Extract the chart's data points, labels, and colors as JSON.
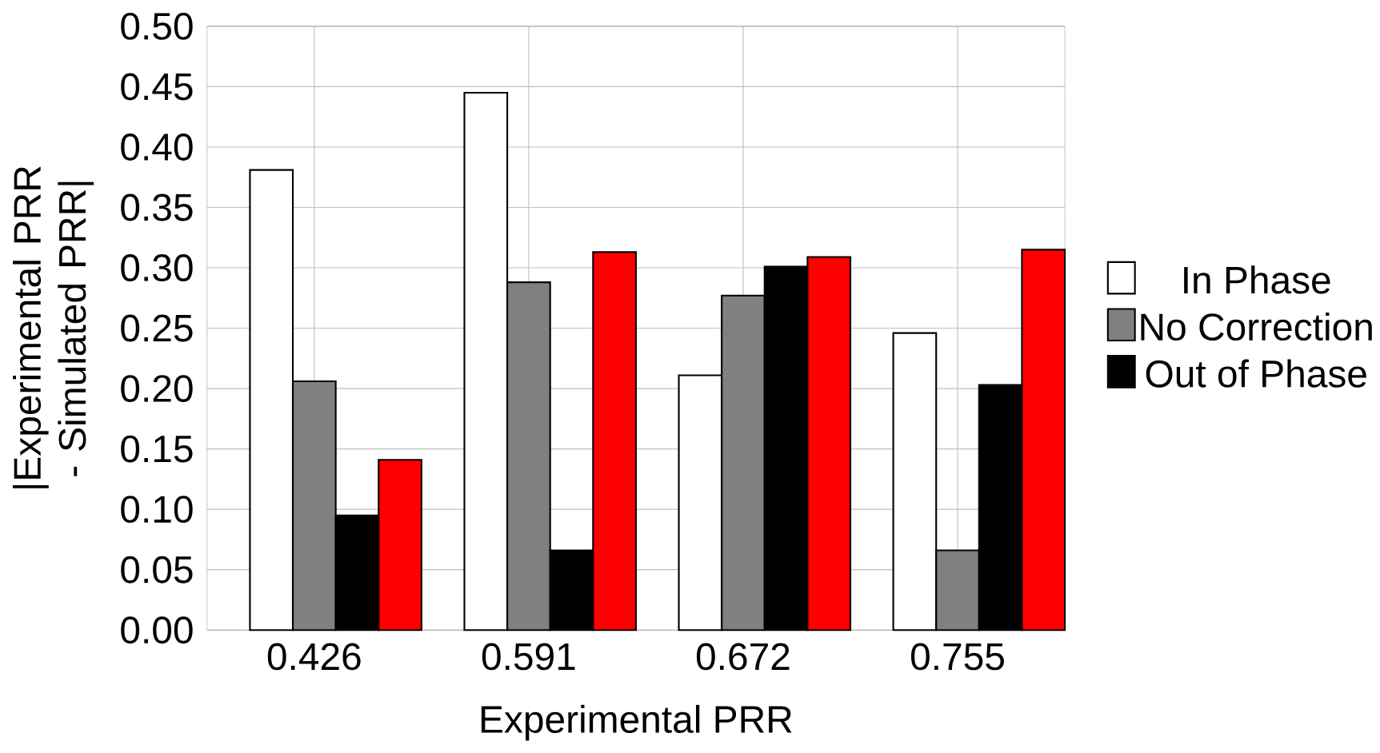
{
  "chart_data": {
    "type": "bar",
    "xlabel": "Experimental PRR",
    "ylabel": "|Experimental PRR - Simulated PRR|",
    "categories": [
      "0.426",
      "0.591",
      "0.672",
      "0.755"
    ],
    "series": [
      {
        "name": "In Phase",
        "color": "#ffffff",
        "values": [
          0.381,
          0.445,
          0.211,
          0.246
        ]
      },
      {
        "name": "No Correction",
        "color": "#808080",
        "values": [
          0.206,
          0.288,
          0.277,
          0.066
        ]
      },
      {
        "name": "Out of Phase",
        "color": "#000000",
        "values": [
          0.095,
          0.066,
          0.301,
          0.203
        ]
      },
      {
        "color": "#ff0000",
        "values": [
          0.141,
          0.313,
          0.309,
          0.315
        ]
      }
    ],
    "ylim": [
      0,
      0.5
    ],
    "yticks": [
      {
        "value": 0,
        "label": "0.00"
      },
      {
        "value": 0.05,
        "label": "0.05"
      },
      {
        "value": 0.1,
        "label": "0.10"
      },
      {
        "value": 0.15,
        "label": "0.15"
      },
      {
        "value": 0.2,
        "label": "0.20"
      },
      {
        "value": 0.25,
        "label": "0.25"
      },
      {
        "value": 0.3,
        "label": "0.30"
      },
      {
        "value": 0.35,
        "label": "0.35"
      },
      {
        "value": 0.4,
        "label": "0.40"
      },
      {
        "value": 0.45,
        "label": "0.45"
      },
      {
        "value": 0.5,
        "label": "0.50"
      }
    ],
    "grid": true,
    "legend": "right"
  }
}
